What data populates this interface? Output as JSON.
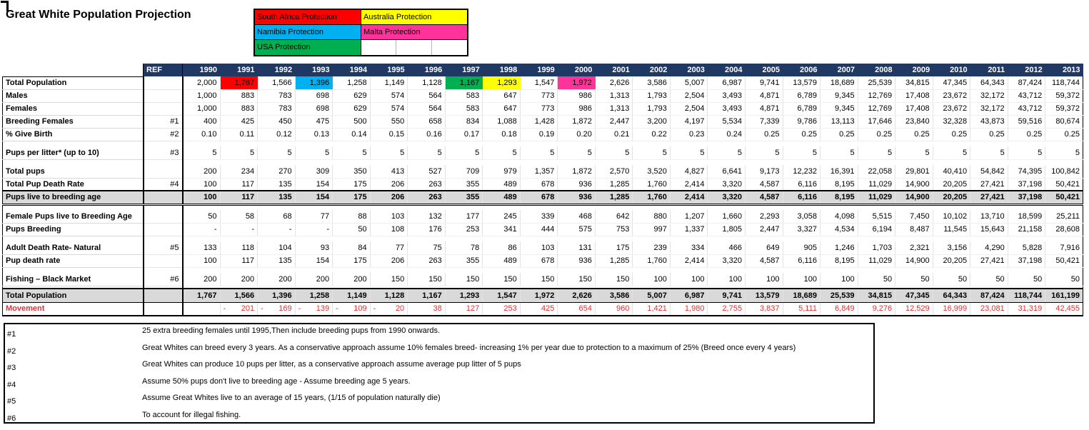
{
  "title": "Great White Population Projection",
  "colors": {
    "navy": "#1F3864",
    "gray": "#D9D9D9",
    "red": "#FF0000",
    "cyan": "#00B0F0",
    "green": "#00B050",
    "yellow": "#FFFF00",
    "pink": "#FF3399",
    "movement_text": "#E03232"
  },
  "legend": {
    "rows": [
      [
        {
          "label": "South Africa Protection",
          "color": "#FF0000"
        },
        {
          "label": "Australia Protection",
          "color": "#FFFF00"
        }
      ],
      [
        {
          "label": "Namibia Protection",
          "color": "#00B0F0"
        },
        {
          "label": "Malta Protection",
          "color": "#FF3399"
        }
      ],
      [
        {
          "label": "USA Protection",
          "color": "#00B050"
        },
        {
          "label": "",
          "color": "#FFFFFF",
          "split": 3
        }
      ]
    ]
  },
  "table": {
    "ref_header": "REF",
    "years": [
      "1990",
      "1991",
      "1992",
      "1993",
      "1994",
      "1995",
      "1996",
      "1997",
      "1998",
      "1999",
      "2000",
      "2001",
      "2002",
      "2003",
      "2004",
      "2005",
      "2006",
      "2007",
      "2008",
      "2009",
      "2010",
      "2011",
      "2012",
      "2013"
    ],
    "rows": [
      {
        "kind": "data",
        "label": "Total Population",
        "ref": "",
        "values": [
          "2,000",
          "1,767",
          "1,566",
          "1,396",
          "1,258",
          "1,149",
          "1,128",
          "1,167",
          "1,293",
          "1,547",
          "1,972",
          "2,626",
          "3,586",
          "5,007",
          "6,987",
          "9,741",
          "13,579",
          "18,689",
          "25,539",
          "34,815",
          "47,345",
          "64,343",
          "87,424",
          "118,744"
        ],
        "highlights": {
          "1": "red",
          "3": "cyan",
          "7": "green",
          "8": "yellow",
          "10": "pink"
        }
      },
      {
        "kind": "data",
        "label": "Males",
        "ref": "",
        "values": [
          "1,000",
          "883",
          "783",
          "698",
          "629",
          "574",
          "564",
          "583",
          "647",
          "773",
          "986",
          "1,313",
          "1,793",
          "2,504",
          "3,493",
          "4,871",
          "6,789",
          "9,345",
          "12,769",
          "17,408",
          "23,672",
          "32,172",
          "43,712",
          "59,372"
        ]
      },
      {
        "kind": "data",
        "label": "Females",
        "ref": "",
        "values": [
          "1,000",
          "883",
          "783",
          "698",
          "629",
          "574",
          "564",
          "583",
          "647",
          "773",
          "986",
          "1,313",
          "1,793",
          "2,504",
          "3,493",
          "4,871",
          "6,789",
          "9,345",
          "12,769",
          "17,408",
          "23,672",
          "32,172",
          "43,712",
          "59,372"
        ]
      },
      {
        "kind": "data",
        "label": "Breeding Females",
        "ref": "#1",
        "values": [
          "400",
          "425",
          "450",
          "475",
          "500",
          "550",
          "658",
          "834",
          "1,088",
          "1,428",
          "1,872",
          "2,447",
          "3,200",
          "4,197",
          "5,534",
          "7,339",
          "9,786",
          "13,113",
          "17,646",
          "23,840",
          "32,328",
          "43,873",
          "59,516",
          "80,674"
        ]
      },
      {
        "kind": "data",
        "label": "% Give Birth",
        "ref": "#2",
        "values": [
          "0.10",
          "0.11",
          "0.12",
          "0.13",
          "0.14",
          "0.15",
          "0.16",
          "0.17",
          "0.18",
          "0.19",
          "0.20",
          "0.21",
          "0.22",
          "0.23",
          "0.24",
          "0.25",
          "0.25",
          "0.25",
          "0.25",
          "0.25",
          "0.25",
          "0.25",
          "0.25",
          "0.25"
        ]
      },
      {
        "kind": "spacer"
      },
      {
        "kind": "data",
        "label": "Pups per litter* (up to 10)",
        "ref": "#3",
        "values": [
          "5",
          "5",
          "5",
          "5",
          "5",
          "5",
          "5",
          "5",
          "5",
          "5",
          "5",
          "5",
          "5",
          "5",
          "5",
          "5",
          "5",
          "5",
          "5",
          "5",
          "5",
          "5",
          "5",
          "5"
        ]
      },
      {
        "kind": "spacer"
      },
      {
        "kind": "data",
        "label": "Total pups",
        "ref": "",
        "values": [
          "200",
          "234",
          "270",
          "309",
          "350",
          "413",
          "527",
          "709",
          "979",
          "1,357",
          "1,872",
          "2,570",
          "3,520",
          "4,827",
          "6,641",
          "9,173",
          "12,232",
          "16,391",
          "22,058",
          "29,801",
          "40,410",
          "54,842",
          "74,395",
          "100,842"
        ]
      },
      {
        "kind": "data",
        "label": "Total Pup Death Rate",
        "ref": "#4",
        "values": [
          "100",
          "117",
          "135",
          "154",
          "175",
          "206",
          "263",
          "355",
          "489",
          "678",
          "936",
          "1,285",
          "1,760",
          "2,414",
          "3,320",
          "4,587",
          "6,116",
          "8,195",
          "11,029",
          "14,900",
          "20,205",
          "27,421",
          "37,198",
          "50,421"
        ]
      },
      {
        "kind": "gray",
        "label": "Pups live to breeding age",
        "ref": "",
        "values": [
          "100",
          "117",
          "135",
          "154",
          "175",
          "206",
          "263",
          "355",
          "489",
          "678",
          "936",
          "1,285",
          "1,760",
          "2,414",
          "3,320",
          "4,587",
          "6,116",
          "8,195",
          "11,029",
          "14,900",
          "20,205",
          "27,421",
          "37,198",
          "50,421"
        ]
      },
      {
        "kind": "spacer"
      },
      {
        "kind": "data",
        "label": "Female Pups live to Breeding Age",
        "ref": "",
        "values": [
          "50",
          "58",
          "68",
          "77",
          "88",
          "103",
          "132",
          "177",
          "245",
          "339",
          "468",
          "642",
          "880",
          "1,207",
          "1,660",
          "2,293",
          "3,058",
          "4,098",
          "5,515",
          "7,450",
          "10,102",
          "13,710",
          "18,599",
          "25,211"
        ]
      },
      {
        "kind": "data",
        "label": "Pups Breeding",
        "ref": "",
        "values": [
          "-",
          "-",
          "-",
          "-",
          "50",
          "108",
          "176",
          "253",
          "341",
          "444",
          "575",
          "753",
          "997",
          "1,337",
          "1,805",
          "2,447",
          "3,327",
          "4,534",
          "6,194",
          "8,487",
          "11,545",
          "15,643",
          "21,158",
          "28,608"
        ]
      },
      {
        "kind": "spacer"
      },
      {
        "kind": "data",
        "label": "Adult Death Rate- Natural",
        "ref": "#5",
        "values": [
          "133",
          "118",
          "104",
          "93",
          "84",
          "77",
          "75",
          "78",
          "86",
          "103",
          "131",
          "175",
          "239",
          "334",
          "466",
          "649",
          "905",
          "1,246",
          "1,703",
          "2,321",
          "3,156",
          "4,290",
          "5,828",
          "7,916"
        ]
      },
      {
        "kind": "data",
        "label": "Pup death rate",
        "ref": "",
        "values": [
          "100",
          "117",
          "135",
          "154",
          "175",
          "206",
          "263",
          "355",
          "489",
          "678",
          "936",
          "1,285",
          "1,760",
          "2,414",
          "3,320",
          "4,587",
          "6,116",
          "8,195",
          "11,029",
          "14,900",
          "20,205",
          "27,421",
          "37,198",
          "50,421"
        ]
      },
      {
        "kind": "spacer"
      },
      {
        "kind": "data",
        "label": "Fishing – Black Market",
        "ref": "#6",
        "values": [
          "200",
          "200",
          "200",
          "200",
          "200",
          "150",
          "150",
          "150",
          "150",
          "150",
          "150",
          "150",
          "100",
          "100",
          "100",
          "100",
          "100",
          "100",
          "50",
          "50",
          "50",
          "50",
          "50",
          "50"
        ]
      },
      {
        "kind": "spacer-sm"
      },
      {
        "kind": "graytotal",
        "label": "Total Population",
        "ref": "",
        "values": [
          "1,767",
          "1,566",
          "1,396",
          "1,258",
          "1,149",
          "1,128",
          "1,167",
          "1,293",
          "1,547",
          "1,972",
          "2,626",
          "3,586",
          "5,007",
          "6,987",
          "9,741",
          "13,579",
          "18,689",
          "25,539",
          "34,815",
          "47,345",
          "64,343",
          "87,424",
          "118,744",
          "161,199"
        ]
      },
      {
        "kind": "movement",
        "label": "Movement",
        "ref": "",
        "values": [
          "",
          "- 201",
          "- 169",
          "- 139",
          "- 109",
          "- 20",
          "38",
          "127",
          "253",
          "425",
          "654",
          "960",
          "1,421",
          "1,980",
          "2,755",
          "3,837",
          "5,111",
          "6,849",
          "9,276",
          "12,529",
          "16,999",
          "23,081",
          "31,319",
          "42,455"
        ]
      }
    ]
  },
  "footnotes": [
    {
      "ref": "#1",
      "text": "25 extra breeding females until 1995,Then include breeding pups from 1990 onwards."
    },
    {
      "ref": "#2",
      "text": "Great Whites can breed every 3 years. As a conservative approach assume 10% females breed- increasing 1% per year due to protection to a maximum of 25% (Breed once every 4 years)"
    },
    {
      "ref": "#3",
      "text": "Great Whites can produce 10 pups per litter, as a conservative approach assume average pup litter of 5 pups"
    },
    {
      "ref": "#4",
      "text": "Assume 50% pups don't live to breeding age - Assume breeding age 5 years."
    },
    {
      "ref": "#5",
      "text": "Assume Great Whites live to an average of 15 years, (1/15 of population naturally die)"
    },
    {
      "ref": "#6",
      "text": "To account for illegal fishing."
    }
  ]
}
